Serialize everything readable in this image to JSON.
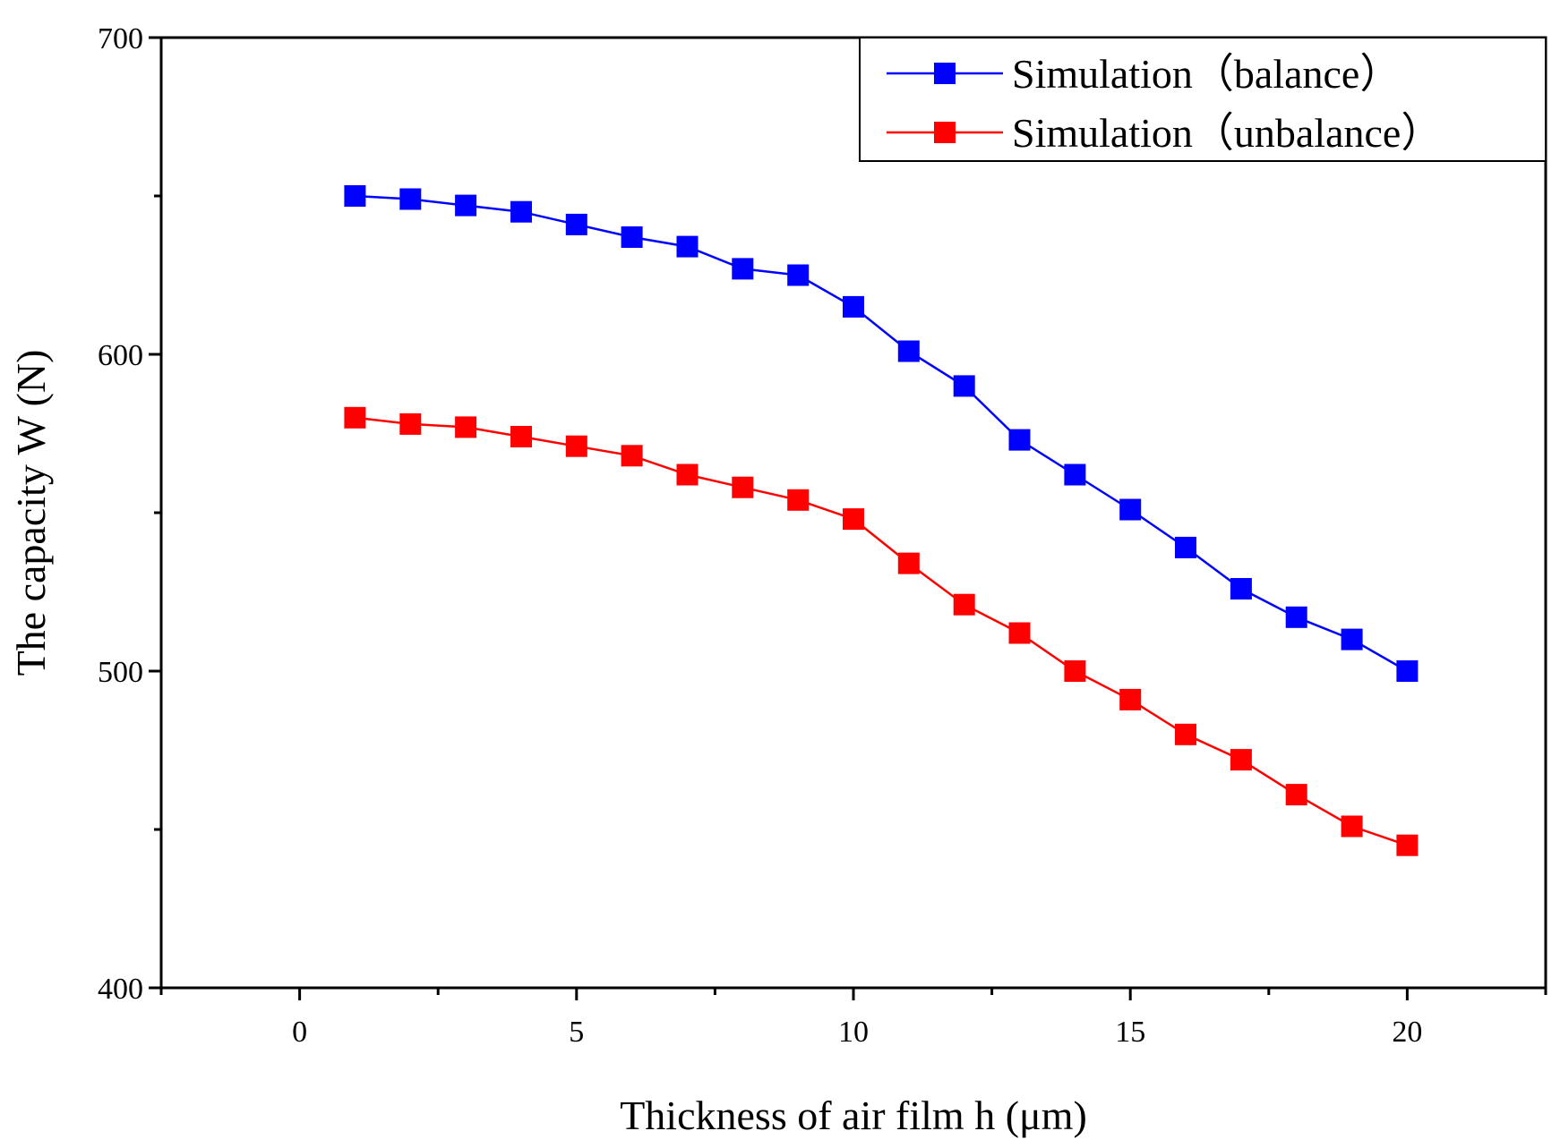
{
  "chart_data": {
    "type": "line",
    "title": "",
    "xlabel": "Thickness of air film h (μm)",
    "ylabel": "The capacity W (N)",
    "xlim": [
      -2.5,
      22.5
    ],
    "ylim": [
      400,
      700
    ],
    "xticks": [
      0,
      5,
      10,
      15,
      20
    ],
    "yticks": [
      400,
      500,
      600,
      700
    ],
    "x_tick_labels": [
      "0",
      "5",
      "10",
      "15",
      "20"
    ],
    "y_tick_labels": [
      "400",
      "500",
      "600",
      "700"
    ],
    "grid": false,
    "legend_position": "top-right",
    "x": [
      1,
      2,
      3,
      4,
      5,
      6,
      7,
      8,
      9,
      10,
      11,
      12,
      13,
      14,
      15,
      16,
      17,
      18,
      19,
      20
    ],
    "series": [
      {
        "name": "Simulation（balance）",
        "color": "#0000ff",
        "marker": "square",
        "values": [
          650,
          649,
          647,
          645,
          641,
          637,
          634,
          627,
          625,
          615,
          601,
          590,
          573,
          562,
          551,
          539,
          526,
          517,
          510,
          500
        ]
      },
      {
        "name": "Simulation（unbalance）",
        "color": "#ff0000",
        "marker": "square",
        "values": [
          580,
          578,
          577,
          574,
          571,
          568,
          562,
          558,
          554,
          548,
          534,
          521,
          512,
          500,
          491,
          480,
          472,
          461,
          451,
          445
        ]
      }
    ]
  }
}
